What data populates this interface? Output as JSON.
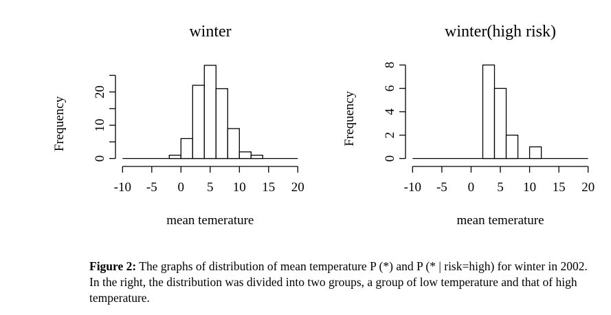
{
  "chart_data": [
    {
      "type": "bar",
      "title": "winter",
      "xlabel": "mean temerature",
      "ylabel": "Frequency",
      "bin_edges": [
        -2,
        0,
        2,
        4,
        6,
        8,
        10,
        12,
        14
      ],
      "values": [
        1,
        6,
        22,
        28,
        21,
        9,
        2,
        1
      ],
      "xlim": [
        -10,
        20
      ],
      "ylim": [
        0,
        25
      ],
      "xticks": [
        "-10",
        "-5",
        "0",
        "5",
        "10",
        "15",
        "20"
      ],
      "yticks": [
        0,
        5,
        10,
        15,
        20,
        25
      ],
      "ytick_labels": [
        "0",
        "10",
        "20"
      ],
      "grid": false
    },
    {
      "type": "bar",
      "title": "winter(high risk)",
      "xlabel": "mean temerature",
      "ylabel": "Frequency",
      "bin_edges": [
        2,
        4,
        6,
        8,
        10,
        12
      ],
      "values": [
        8,
        6,
        2,
        0,
        1
      ],
      "xlim": [
        -10,
        20
      ],
      "ylim": [
        0,
        8
      ],
      "xticks": [
        "-10",
        "-5",
        "0",
        "5",
        "10",
        "15",
        "20"
      ],
      "yticks": [
        0,
        2,
        4,
        6,
        8
      ],
      "ytick_labels": [
        "0",
        "2",
        "4",
        "6",
        "8"
      ],
      "grid": false
    }
  ],
  "caption": {
    "label": "Figure 2:",
    "text": " The graphs of distribution of mean temperature P (*) and P (* | risk=high) for winter in 2002. In the right, the distribution was divided into two groups, a group of low temperature and that of high temperature."
  }
}
